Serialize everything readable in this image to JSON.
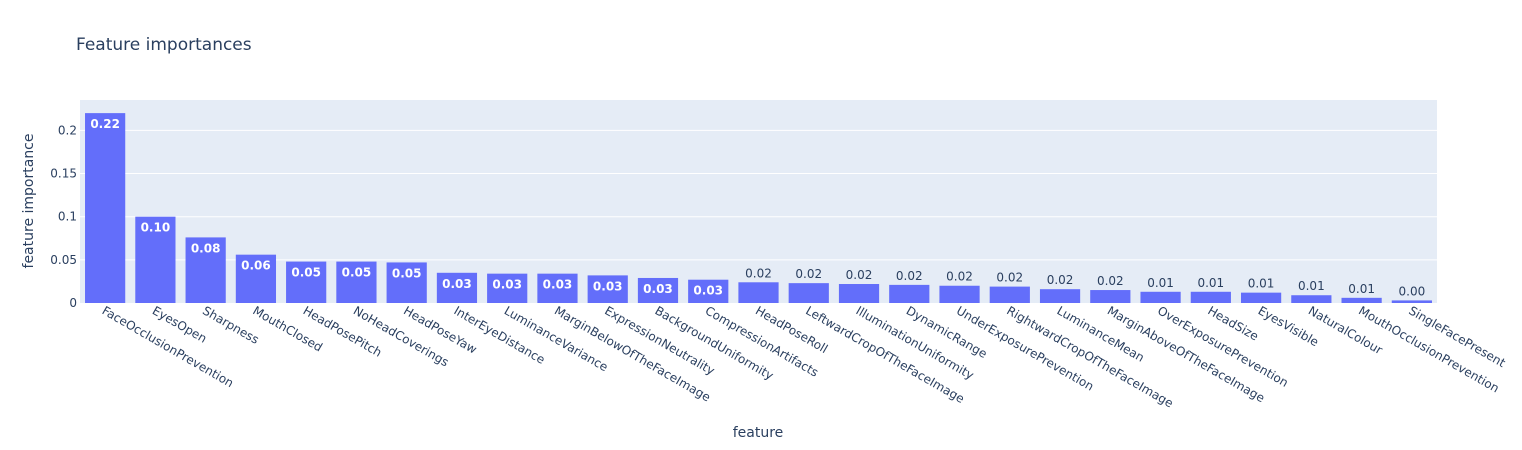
{
  "chart_data": {
    "type": "bar",
    "title": "Feature importances",
    "xlabel": "feature",
    "ylabel": "feature importance",
    "ylim": [
      0,
      0.2352
    ],
    "yticks": [
      0,
      0.05,
      0.1,
      0.15,
      0.2
    ],
    "ytick_labels": [
      "0",
      "0.05",
      "0.1",
      "0.15",
      "0.2"
    ],
    "grid": true,
    "bar_color": "#636efa",
    "plot_bg": "#e5ecf6",
    "categories": [
      "FaceOcclusionPrevention",
      "EyesOpen",
      "Sharpness",
      "MouthClosed",
      "HeadPosePitch",
      "NoHeadCoverings",
      "HeadPoseYaw",
      "InterEyeDistance",
      "LuminanceVariance",
      "MarginBelowOfTheFaceImage",
      "ExpressionNeutrality",
      "BackgroundUniformity",
      "CompressionArtifacts",
      "HeadPoseRoll",
      "LeftwardCropOfTheFaceImage",
      "IlluminationUniformity",
      "DynamicRange",
      "UnderExposurePrevention",
      "RightwardCropOfTheFaceImage",
      "LuminanceMean",
      "MarginAboveOfTheFaceImage",
      "OverExposurePrevention",
      "HeadSize",
      "EyesVisible",
      "NaturalColour",
      "MouthOcclusionPrevention",
      "SingleFacePresent"
    ],
    "values": [
      0.22,
      0.1,
      0.076,
      0.056,
      0.048,
      0.048,
      0.047,
      0.035,
      0.034,
      0.034,
      0.032,
      0.029,
      0.027,
      0.024,
      0.023,
      0.022,
      0.021,
      0.02,
      0.019,
      0.016,
      0.015,
      0.013,
      0.013,
      0.012,
      0.009,
      0.006,
      0.003
    ],
    "data_labels": [
      "0.22",
      "0.10",
      "0.08",
      "0.06",
      "0.05",
      "0.05",
      "0.05",
      "0.03",
      "0.03",
      "0.03",
      "0.03",
      "0.03",
      "0.03",
      "0.02",
      "0.02",
      "0.02",
      "0.02",
      "0.02",
      "0.02",
      "0.02",
      "0.02",
      "0.01",
      "0.01",
      "0.01",
      "0.01",
      "0.01",
      "0.00"
    ]
  }
}
